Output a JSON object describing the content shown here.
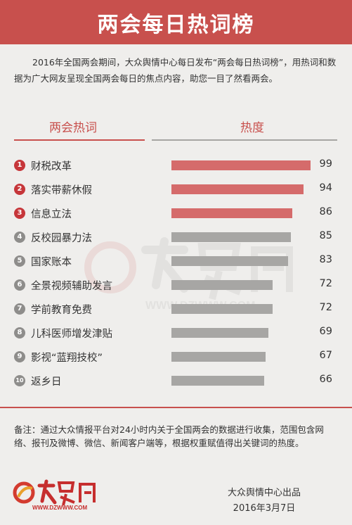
{
  "header": {
    "title": "两会每日热词榜"
  },
  "intro": {
    "text": "2016年全国两会期间，大众舆情中心每日发布“两会每日热词榜”，用热词和数据为广大网友呈现全国两会每日的焦点内容，助您一目了然看两会。"
  },
  "columns": {
    "keyword": "两会热词",
    "heat": "热度"
  },
  "chart_data": {
    "type": "bar",
    "orientation": "horizontal",
    "categories": [
      "财税改革",
      "落实带薪休假",
      "信息立法",
      "反校园暴力法",
      "国家账本",
      "全景视频辅助发言",
      "学前教育免费",
      "儿科医师增发津贴",
      "影视“蓝翔技校”",
      "返乡日"
    ],
    "ranks": [
      "1",
      "2",
      "3",
      "4",
      "5",
      "6",
      "7",
      "8",
      "9",
      "10"
    ],
    "values": [
      99,
      94,
      86,
      85,
      83,
      72,
      72,
      69,
      67,
      66
    ],
    "xlim": [
      0,
      99
    ],
    "colors": {
      "top3": "#d56b6b",
      "rest": "#a7a6a4",
      "badge_top3": "#c6363a",
      "badge_rest": "#8e8d8b"
    }
  },
  "watermark": {
    "text": "WWW.DZWWW.COM"
  },
  "note": "备注：通过大众情报平台对24小时内关于全国两会的数据进行收集，范围包含网络、报刊及微博、微信、新闻客户端等，根据权重赋值得出关键词的热度。",
  "footer": {
    "logo_url": "WWW.DZWWW.COM",
    "publisher": "大众舆情中心出品",
    "date": "2016年3月7日"
  }
}
